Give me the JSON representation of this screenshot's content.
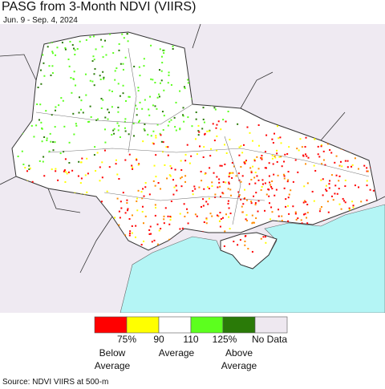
{
  "header": {
    "title": "PASG from 3-Month NDVI (VIIRS)",
    "subtitle": "Jun. 9 - Sep. 4, 2024"
  },
  "legend": {
    "colors": [
      "#ff0000",
      "#ffff00",
      "#ffffff",
      "#5cff1e",
      "#2a7a08",
      "#eee8f0"
    ],
    "tick_labels": [
      "75%",
      "90",
      "110",
      "125%",
      "No Data"
    ],
    "group_labels": [
      "Below Average",
      "Average",
      "Above Average"
    ]
  },
  "source": "Source: NDVI VIIRS at 500-m"
}
